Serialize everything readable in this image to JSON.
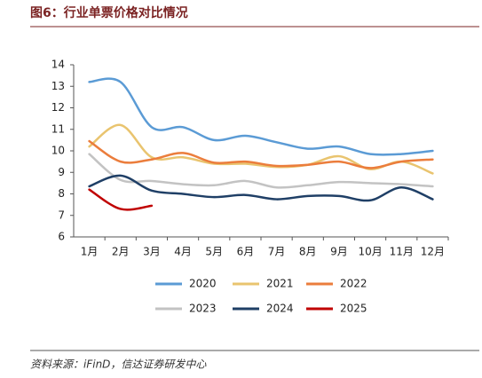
{
  "chart_data": {
    "type": "line",
    "title": "图6：行业单票价格对比情况",
    "source": "资料来源：iFinD，信达证券研发中心",
    "categories": [
      "1月",
      "2月",
      "3月",
      "4月",
      "5月",
      "6月",
      "7月",
      "8月",
      "9月",
      "10月",
      "11月",
      "12月"
    ],
    "ylim": [
      6,
      14
    ],
    "yticks": [
      6,
      7,
      8,
      9,
      10,
      11,
      12,
      13,
      14
    ],
    "grid": false,
    "legend": "bottom",
    "series": [
      {
        "name": "2020",
        "color": "#5b9bd5",
        "values": [
          13.2,
          13.2,
          11.1,
          11.1,
          10.5,
          10.7,
          10.4,
          10.1,
          10.2,
          9.85,
          9.85,
          10.0
        ]
      },
      {
        "name": "2021",
        "color": "#e9c46f",
        "values": [
          10.2,
          11.2,
          9.7,
          9.7,
          9.4,
          9.4,
          9.25,
          9.35,
          9.75,
          9.15,
          9.5,
          8.95
        ]
      },
      {
        "name": "2022",
        "color": "#eb7d3c",
        "values": [
          10.45,
          9.5,
          9.6,
          9.9,
          9.45,
          9.5,
          9.3,
          9.35,
          9.5,
          9.2,
          9.5,
          9.6
        ]
      },
      {
        "name": "2023",
        "color": "#c3c3c3",
        "values": [
          9.85,
          8.65,
          8.6,
          8.45,
          8.4,
          8.6,
          8.3,
          8.4,
          8.55,
          8.5,
          8.45,
          8.35
        ]
      },
      {
        "name": "2024",
        "color": "#1f3f66",
        "values": [
          8.35,
          8.85,
          8.15,
          8.0,
          7.85,
          7.95,
          7.75,
          7.9,
          7.9,
          7.7,
          8.3,
          7.75
        ]
      },
      {
        "name": "2025",
        "color": "#c00000",
        "values": [
          8.2,
          7.3,
          7.45,
          null,
          null,
          null,
          null,
          null,
          null,
          null,
          null,
          null
        ]
      }
    ]
  }
}
